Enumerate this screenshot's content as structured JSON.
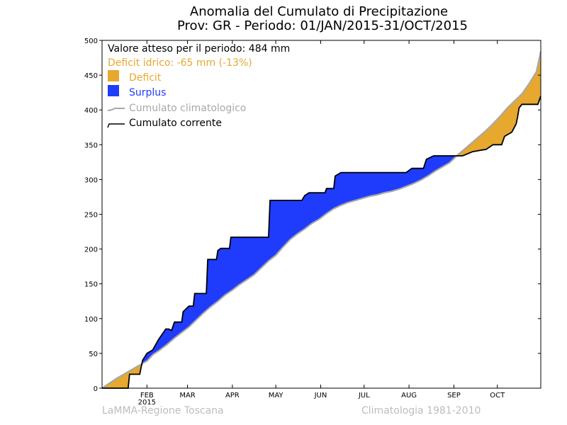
{
  "chart_data": {
    "type": "area",
    "title_line1": "Anomalia del Cumulato di Precipitazione",
    "title_line2": "Prov: GR - Periodo: 01/JAN/2015-31/OCT/2015",
    "ylim": [
      0,
      500
    ],
    "yticks": [
      0,
      50,
      100,
      150,
      200,
      250,
      300,
      350,
      400,
      450,
      500
    ],
    "xlim": [
      0,
      303
    ],
    "month_ticks": [
      {
        "label": "FEB",
        "day": 31
      },
      {
        "label": "MAR",
        "day": 59
      },
      {
        "label": "APR",
        "day": 90
      },
      {
        "label": "MAY",
        "day": 120
      },
      {
        "label": "JUN",
        "day": 151
      },
      {
        "label": "JUL",
        "day": 181
      },
      {
        "label": "AUG",
        "day": 212
      },
      {
        "label": "SEP",
        "day": 243
      },
      {
        "label": "OCT",
        "day": 273
      }
    ],
    "year_label": "2015",
    "legend": {
      "expected": "Valore atteso per il periodo: 484 mm",
      "deficit_text": "Deficit idrico: -65 mm (-13%)",
      "deficit_label": "Deficit",
      "surplus_label": "Surplus",
      "climatological_label": "Cumulato climatologico",
      "current_label": "Cumulato corrente"
    },
    "colors": {
      "deficit": "#e6a82e",
      "surplus": "#1f3cfc",
      "climatological": "#a8a8a8",
      "current": "#000000",
      "deficit_text": "#e6a82e",
      "climatological_text": "#a8a8a8"
    },
    "series": [
      {
        "name": "Cumulato climatologico",
        "points": [
          [
            0,
            0
          ],
          [
            5,
            7
          ],
          [
            10,
            14
          ],
          [
            15,
            20
          ],
          [
            20,
            26
          ],
          [
            25,
            32
          ],
          [
            30,
            38
          ],
          [
            31,
            39
          ],
          [
            35,
            48
          ],
          [
            40,
            55
          ],
          [
            45,
            63
          ],
          [
            50,
            72
          ],
          [
            55,
            80
          ],
          [
            60,
            88
          ],
          [
            65,
            98
          ],
          [
            70,
            108
          ],
          [
            75,
            117
          ],
          [
            80,
            125
          ],
          [
            85,
            134
          ],
          [
            90,
            141
          ],
          [
            95,
            149
          ],
          [
            100,
            156
          ],
          [
            105,
            163
          ],
          [
            110,
            173
          ],
          [
            115,
            183
          ],
          [
            120,
            191
          ],
          [
            125,
            203
          ],
          [
            130,
            214
          ],
          [
            135,
            222
          ],
          [
            140,
            229
          ],
          [
            145,
            237
          ],
          [
            150,
            243
          ],
          [
            155,
            251
          ],
          [
            160,
            258
          ],
          [
            165,
            263
          ],
          [
            170,
            267
          ],
          [
            175,
            270
          ],
          [
            180,
            273
          ],
          [
            185,
            276
          ],
          [
            190,
            278
          ],
          [
            195,
            281
          ],
          [
            200,
            283
          ],
          [
            205,
            286
          ],
          [
            210,
            290
          ],
          [
            215,
            294
          ],
          [
            220,
            299
          ],
          [
            225,
            305
          ],
          [
            230,
            312
          ],
          [
            235,
            318
          ],
          [
            240,
            324
          ],
          [
            243,
            330
          ],
          [
            246,
            336
          ],
          [
            250,
            343
          ],
          [
            255,
            352
          ],
          [
            260,
            361
          ],
          [
            265,
            370
          ],
          [
            270,
            380
          ],
          [
            275,
            391
          ],
          [
            280,
            403
          ],
          [
            285,
            413
          ],
          [
            290,
            423
          ],
          [
            295,
            438
          ],
          [
            300,
            455
          ],
          [
            303,
            484
          ]
        ]
      },
      {
        "name": "Cumulato corrente",
        "points": [
          [
            0,
            0
          ],
          [
            18,
            0
          ],
          [
            19,
            20
          ],
          [
            26,
            20
          ],
          [
            28,
            40
          ],
          [
            31,
            50
          ],
          [
            35,
            55
          ],
          [
            39,
            70
          ],
          [
            44,
            85
          ],
          [
            46,
            85
          ],
          [
            48,
            83
          ],
          [
            50,
            95
          ],
          [
            55,
            95
          ],
          [
            56,
            110
          ],
          [
            60,
            118
          ],
          [
            63,
            118
          ],
          [
            64,
            136
          ],
          [
            72,
            136
          ],
          [
            73,
            185
          ],
          [
            79,
            185
          ],
          [
            80,
            198
          ],
          [
            82,
            201
          ],
          [
            88,
            201
          ],
          [
            89,
            217
          ],
          [
            115,
            217
          ],
          [
            116,
            270
          ],
          [
            138,
            270
          ],
          [
            140,
            277
          ],
          [
            143,
            281
          ],
          [
            154,
            281
          ],
          [
            155,
            287
          ],
          [
            160,
            287
          ],
          [
            161,
            305
          ],
          [
            165,
            310
          ],
          [
            210,
            310
          ],
          [
            214,
            316
          ],
          [
            222,
            316
          ],
          [
            224,
            329
          ],
          [
            229,
            334
          ],
          [
            248,
            334
          ],
          [
            249,
            334
          ],
          [
            256,
            340
          ],
          [
            264,
            343
          ],
          [
            265,
            343
          ],
          [
            270,
            350
          ],
          [
            276,
            350
          ],
          [
            278,
            362
          ],
          [
            283,
            368
          ],
          [
            286,
            380
          ],
          [
            287,
            390
          ],
          [
            288,
            403
          ],
          [
            290,
            408
          ],
          [
            301,
            408
          ],
          [
            303,
            420
          ]
        ]
      }
    ]
  },
  "footer": {
    "left": "LaMMA-Regione Toscana",
    "right": "Climatologia 1981-2010"
  }
}
